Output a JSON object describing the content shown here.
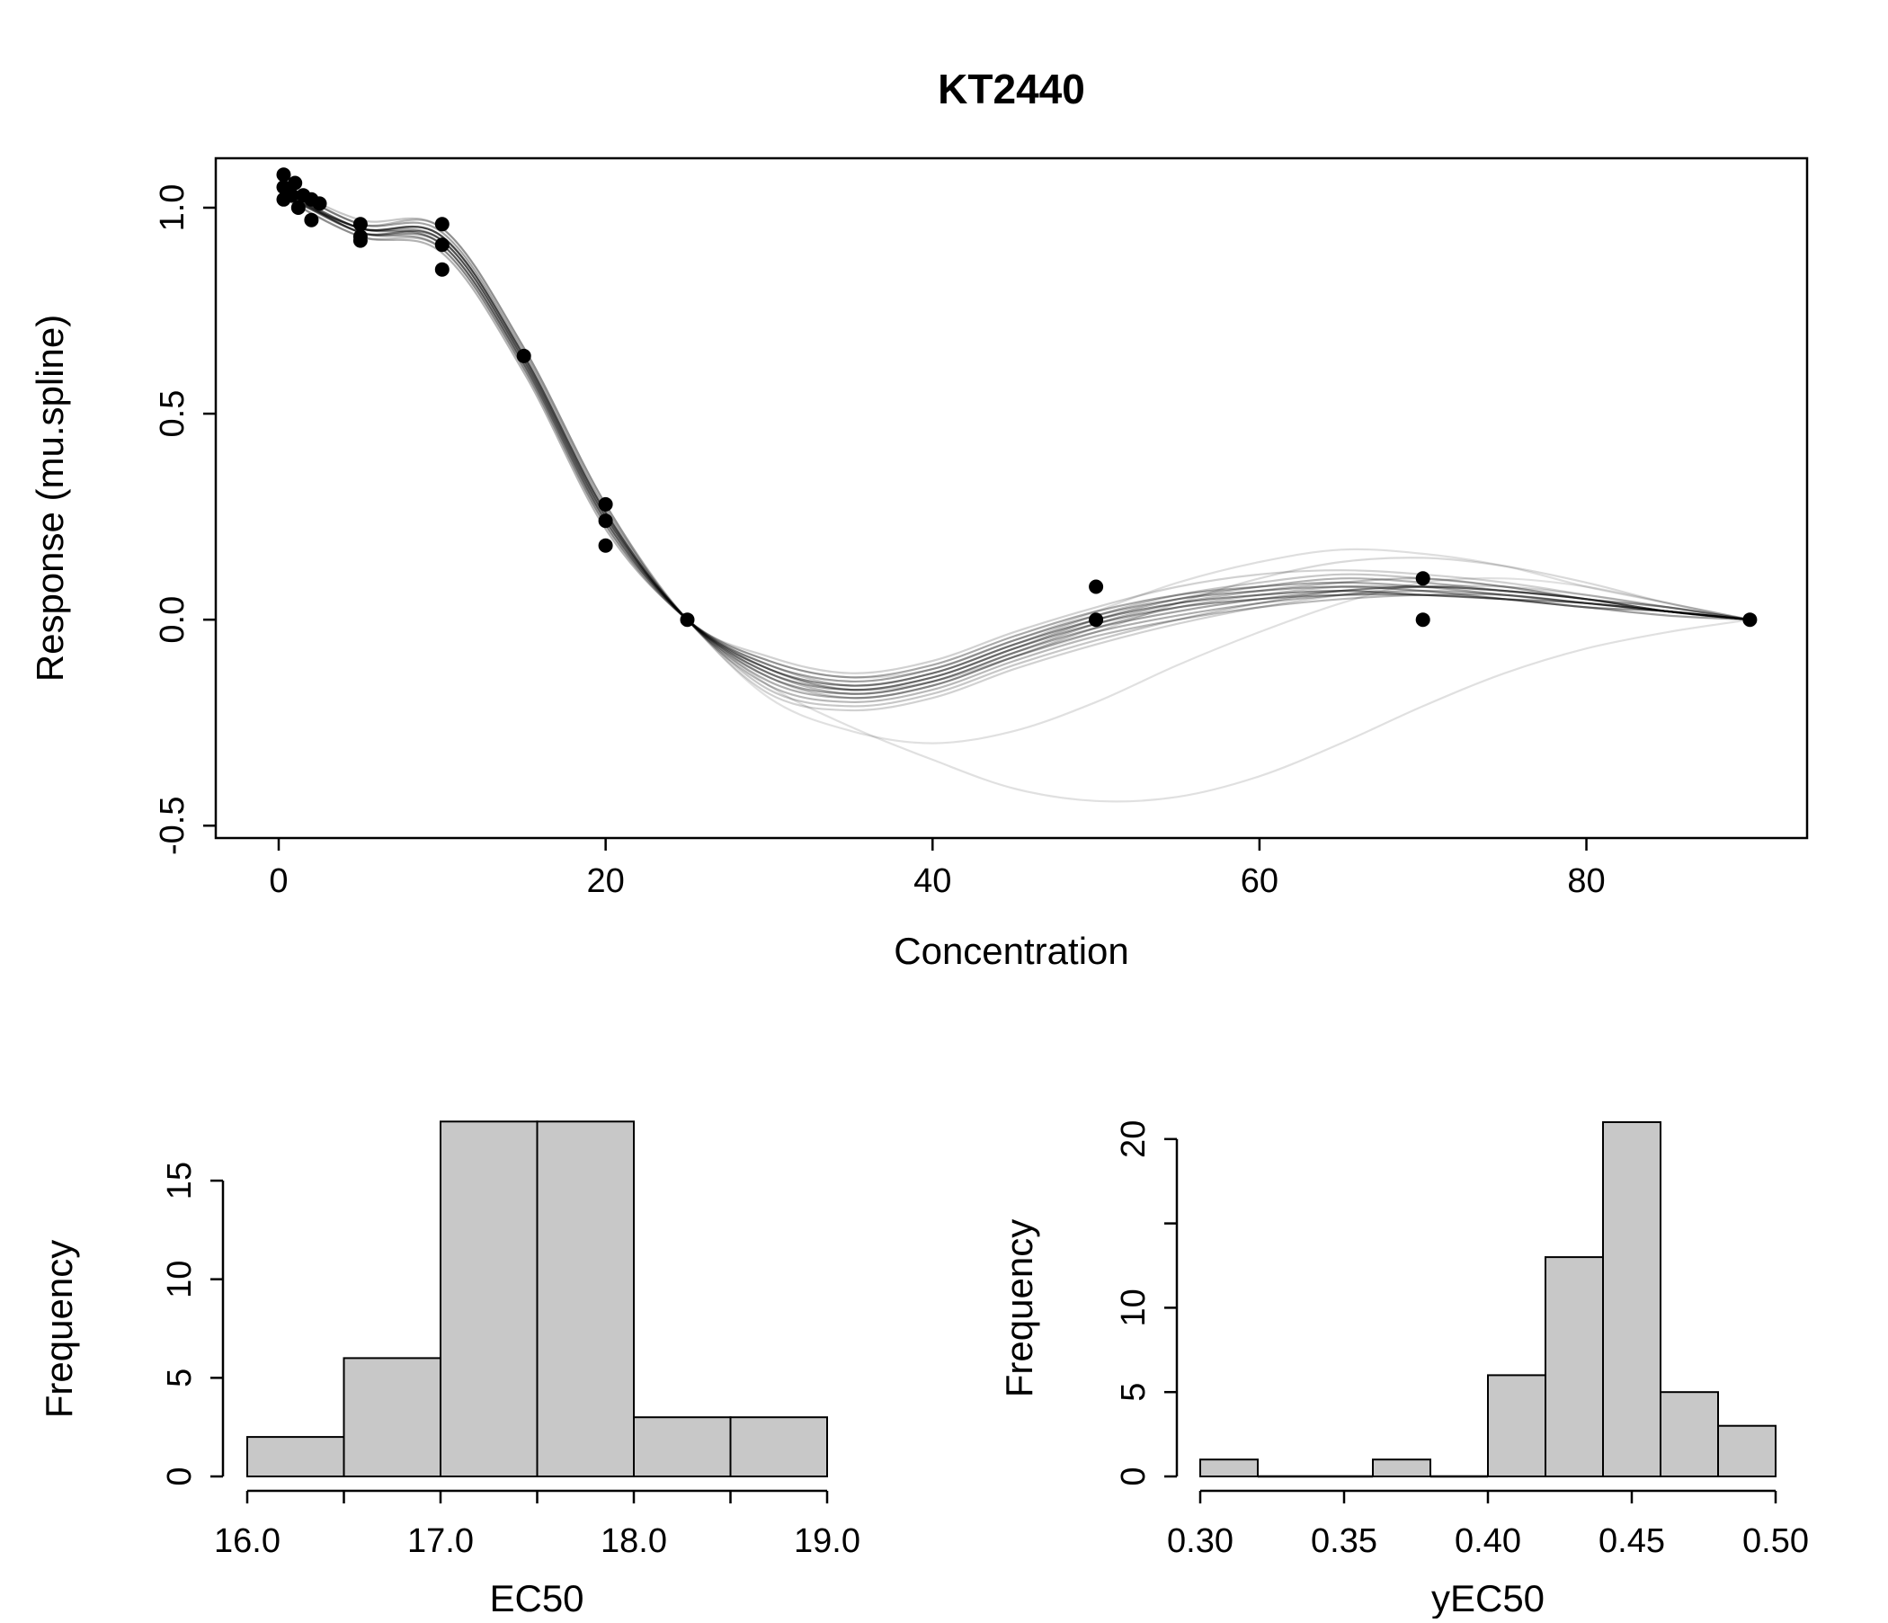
{
  "title": "KT2440",
  "chart_data": [
    {
      "id": "main",
      "type": "line",
      "title": "KT2440",
      "xlabel": "Concentration",
      "ylabel": "Response (mu.spline)",
      "xlim": [
        -3.85,
        93.5
      ],
      "ylim": [
        -0.53,
        1.12
      ],
      "xticks": [
        "0",
        "20",
        "40",
        "60",
        "80"
      ],
      "xtick_values": [
        0,
        20,
        40,
        60,
        80
      ],
      "yticks": [
        "-0.5",
        "0.0",
        "0.5",
        "1.0"
      ],
      "ytick_values": [
        -0.5,
        0.0,
        0.5,
        1.0
      ],
      "grid": false,
      "legend": false,
      "points": [
        [
          0.3,
          1.08
        ],
        [
          0.3,
          1.05
        ],
        [
          0.3,
          1.02
        ],
        [
          0.8,
          1.03
        ],
        [
          1,
          1.06
        ],
        [
          1.2,
          1.0
        ],
        [
          1.5,
          1.03
        ],
        [
          2,
          1.02
        ],
        [
          2,
          0.97
        ],
        [
          2.5,
          1.01
        ],
        [
          5,
          0.96
        ],
        [
          5,
          0.93
        ],
        [
          5,
          0.92
        ],
        [
          10,
          0.96
        ],
        [
          10,
          0.91
        ],
        [
          10,
          0.85
        ],
        [
          15,
          0.64
        ],
        [
          20,
          0.28
        ],
        [
          20,
          0.24
        ],
        [
          20,
          0.18
        ],
        [
          25,
          0.0
        ],
        [
          50,
          0.08
        ],
        [
          50,
          0.0
        ],
        [
          70,
          0.1
        ],
        [
          70,
          0.0
        ],
        [
          90,
          0.0
        ]
      ],
      "curve_x": [
        0,
        5,
        10,
        15,
        20,
        25,
        30,
        35,
        40,
        45,
        50,
        55,
        60,
        65,
        70,
        75,
        80,
        85,
        90
      ],
      "curves": [
        {
          "opacity": 0.45,
          "y": [
            1.04,
            0.95,
            0.93,
            0.64,
            0.26,
            0,
            -0.12,
            -0.16,
            -0.13,
            -0.06,
            0,
            0.04,
            0.06,
            0.07,
            0.06,
            0.05,
            0.04,
            0.02,
            0
          ]
        },
        {
          "opacity": 0.42,
          "y": [
            1.05,
            0.94,
            0.92,
            0.63,
            0.25,
            0,
            -0.13,
            -0.17,
            -0.14,
            -0.07,
            -0.01,
            0.03,
            0.05,
            0.06,
            0.06,
            0.05,
            0.03,
            0.02,
            0
          ]
        },
        {
          "opacity": 0.38,
          "y": [
            1.03,
            0.95,
            0.91,
            0.62,
            0.24,
            0,
            -0.11,
            -0.15,
            -0.12,
            -0.05,
            0.01,
            0.05,
            0.07,
            0.08,
            0.07,
            0.05,
            0.03,
            0.01,
            0
          ]
        },
        {
          "opacity": 0.36,
          "y": [
            1.06,
            0.96,
            0.94,
            0.65,
            0.27,
            0,
            -0.14,
            -0.18,
            -0.15,
            -0.08,
            -0.02,
            0.02,
            0.05,
            0.07,
            0.08,
            0.07,
            0.05,
            0.02,
            0
          ]
        },
        {
          "opacity": 0.34,
          "y": [
            1.04,
            0.94,
            0.9,
            0.61,
            0.23,
            0,
            -0.1,
            -0.14,
            -0.11,
            -0.04,
            0.02,
            0.06,
            0.08,
            0.09,
            0.08,
            0.06,
            0.04,
            0.02,
            0
          ]
        },
        {
          "opacity": 0.32,
          "y": [
            1.05,
            0.95,
            0.93,
            0.64,
            0.26,
            0,
            -0.15,
            -0.19,
            -0.16,
            -0.09,
            -0.03,
            0.01,
            0.04,
            0.06,
            0.07,
            0.06,
            0.04,
            0.02,
            0
          ]
        },
        {
          "opacity": 0.3,
          "y": [
            1.03,
            0.93,
            0.89,
            0.6,
            0.22,
            0,
            -0.12,
            -0.17,
            -0.14,
            -0.07,
            0,
            0.05,
            0.08,
            0.1,
            0.09,
            0.07,
            0.05,
            0.02,
            0
          ]
        },
        {
          "opacity": 0.28,
          "y": [
            1.06,
            0.96,
            0.95,
            0.66,
            0.28,
            0,
            -0.16,
            -0.2,
            -0.17,
            -0.1,
            -0.04,
            0,
            0.03,
            0.05,
            0.06,
            0.06,
            0.04,
            0.02,
            0
          ]
        },
        {
          "opacity": 0.26,
          "y": [
            1.04,
            0.95,
            0.92,
            0.63,
            0.25,
            0,
            -0.13,
            -0.18,
            -0.15,
            -0.08,
            -0.01,
            0.04,
            0.07,
            0.09,
            0.1,
            0.08,
            0.05,
            0.03,
            0
          ]
        },
        {
          "opacity": 0.24,
          "y": [
            1.05,
            0.94,
            0.91,
            0.62,
            0.24,
            0,
            -0.14,
            -0.19,
            -0.16,
            -0.09,
            -0.02,
            0.03,
            0.06,
            0.08,
            0.08,
            0.07,
            0.05,
            0.02,
            0
          ]
        },
        {
          "opacity": 0.22,
          "y": [
            1.03,
            0.93,
            0.9,
            0.61,
            0.23,
            0,
            -0.17,
            -0.21,
            -0.18,
            -0.11,
            -0.05,
            0,
            0.04,
            0.07,
            0.08,
            0.07,
            0.05,
            0.03,
            0
          ]
        },
        {
          "opacity": 0.22,
          "y": [
            1.06,
            0.97,
            0.95,
            0.66,
            0.28,
            0,
            -0.11,
            -0.16,
            -0.13,
            -0.06,
            0.01,
            0.06,
            0.09,
            0.11,
            0.1,
            0.08,
            0.05,
            0.02,
            0
          ]
        },
        {
          "opacity": 0.18,
          "y": [
            1.04,
            0.94,
            0.92,
            0.63,
            0.25,
            0,
            -0.18,
            -0.22,
            -0.19,
            -0.12,
            -0.06,
            -0.01,
            0.03,
            0.06,
            0.08,
            0.08,
            0.06,
            0.03,
            0
          ]
        },
        {
          "opacity": 0.18,
          "y": [
            1.05,
            0.95,
            0.93,
            0.64,
            0.26,
            0,
            -0.09,
            -0.13,
            -0.1,
            -0.03,
            0.03,
            0.08,
            0.11,
            0.12,
            0.11,
            0.09,
            0.06,
            0.03,
            0
          ]
        },
        {
          "opacity": 0.15,
          "y": [
            1.04,
            0.94,
            0.91,
            0.62,
            0.24,
            0,
            -0.12,
            -0.17,
            -0.15,
            -0.09,
            -0.03,
            0.04,
            0.1,
            0.14,
            0.15,
            0.13,
            0.09,
            0.04,
            0
          ]
        },
        {
          "opacity": 0.12,
          "y": [
            1.05,
            0.95,
            0.92,
            0.63,
            0.25,
            0,
            -0.16,
            -0.26,
            -0.34,
            -0.41,
            -0.44,
            -0.43,
            -0.38,
            -0.3,
            -0.21,
            -0.13,
            -0.07,
            -0.03,
            0
          ]
        },
        {
          "opacity": 0.12,
          "y": [
            1.04,
            0.94,
            0.91,
            0.62,
            0.24,
            0,
            -0.19,
            -0.27,
            -0.3,
            -0.27,
            -0.2,
            -0.11,
            -0.03,
            0.04,
            0.09,
            0.1,
            0.08,
            0.04,
            0
          ]
        },
        {
          "opacity": 0.13,
          "y": [
            1.05,
            0.95,
            0.93,
            0.64,
            0.26,
            0,
            -0.1,
            -0.14,
            -0.12,
            -0.05,
            0.02,
            0.09,
            0.14,
            0.17,
            0.16,
            0.13,
            0.08,
            0.04,
            0
          ]
        }
      ]
    },
    {
      "id": "ec50",
      "type": "bar",
      "xlabel": "EC50",
      "ylabel": "Frequency",
      "bin_start": 16.0,
      "bin_width": 0.5,
      "counts": [
        2,
        6,
        18,
        18,
        3,
        3
      ],
      "xtick_values": [
        16.0,
        16.5,
        17.0,
        17.5,
        18.0,
        18.5,
        19.0
      ],
      "xtick_labels": [
        "16.0",
        "",
        "17.0",
        "",
        "18.0",
        "",
        "19.0"
      ],
      "ytick_values": [
        0,
        5,
        10,
        15
      ],
      "ytick_labels": [
        "0",
        "5",
        "10",
        "15"
      ],
      "bar_color": "#c8c8c8"
    },
    {
      "id": "yec50",
      "type": "bar",
      "xlabel": "yEC50",
      "ylabel": "Frequency",
      "bin_start": 0.3,
      "bin_width": 0.02,
      "counts": [
        1,
        0,
        0,
        1,
        0,
        6,
        13,
        21,
        5,
        3
      ],
      "xtick_values": [
        0.3,
        0.35,
        0.4,
        0.45,
        0.5
      ],
      "xtick_labels": [
        "0.30",
        "0.35",
        "0.40",
        "0.45",
        "0.50"
      ],
      "ytick_values": [
        0,
        5,
        10,
        15,
        20
      ],
      "ytick_labels": [
        "0",
        "5",
        "10",
        "",
        "20"
      ],
      "bar_color": "#c8c8c8"
    }
  ]
}
